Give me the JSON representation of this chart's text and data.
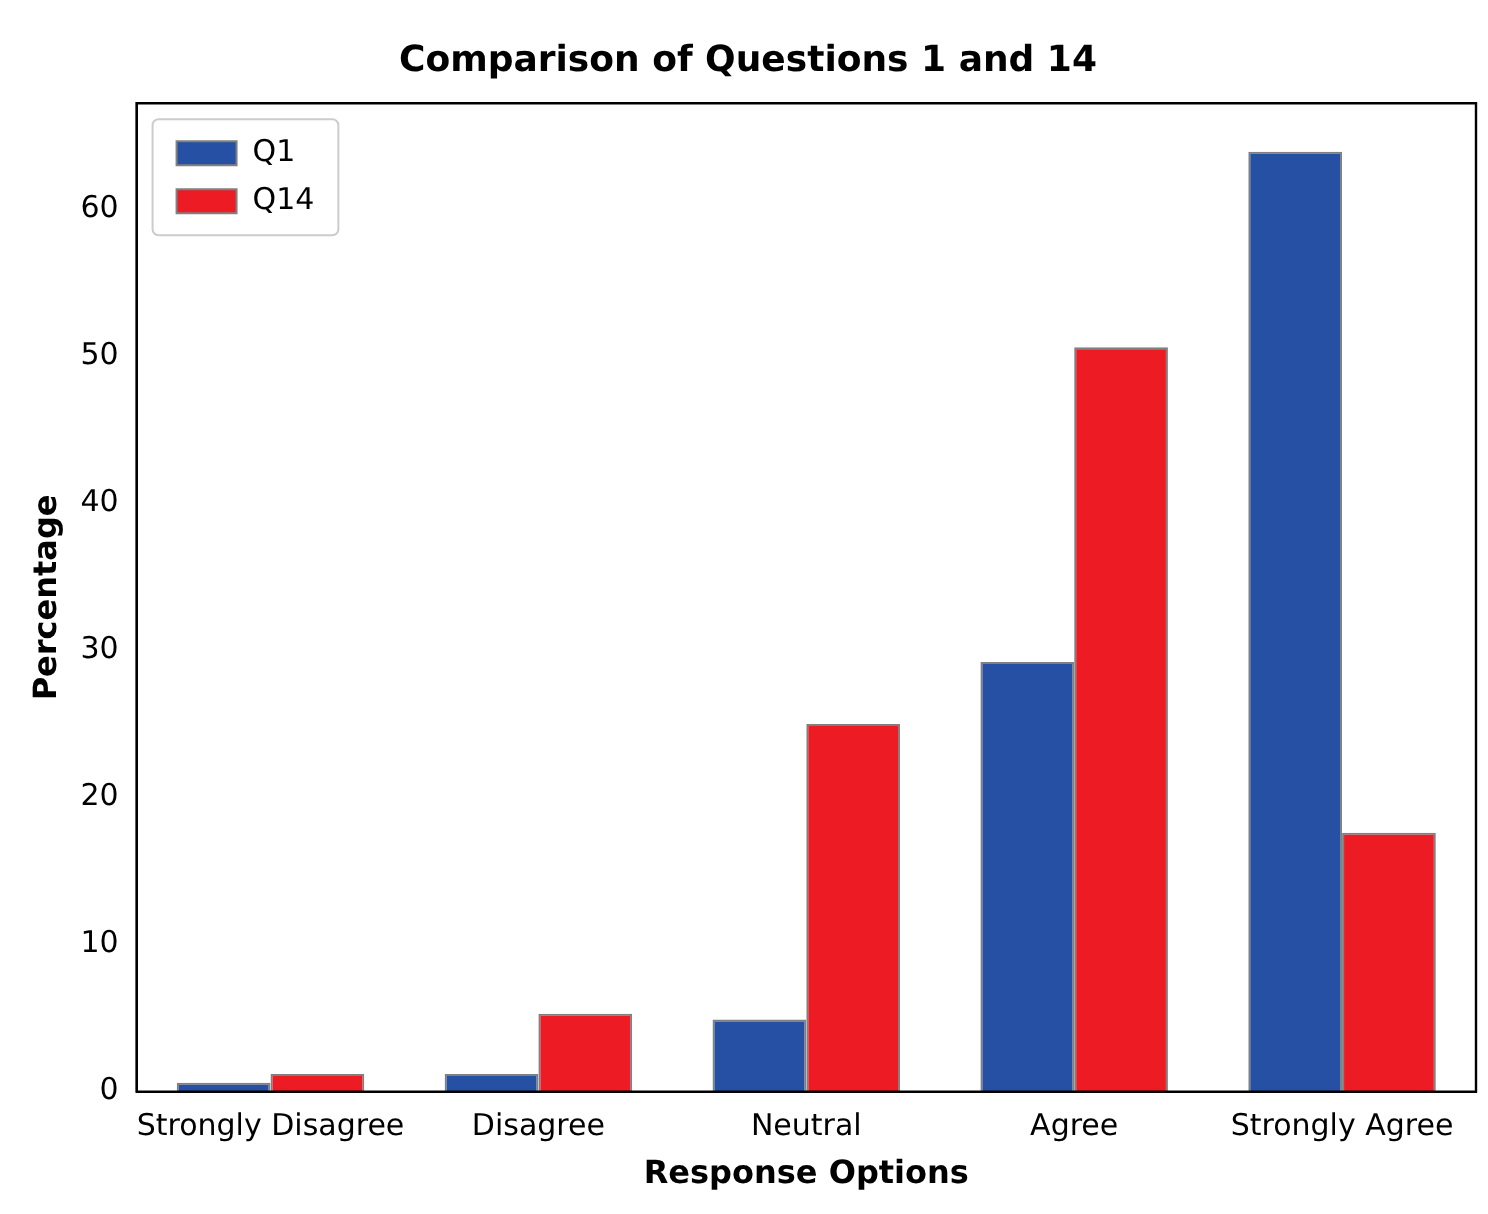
{
  "chart_data": {
    "type": "bar",
    "title": "Comparison of Questions 1 and 14",
    "xlabel": "Response Options",
    "ylabel": "Percentage",
    "categories": [
      "Strongly Disagree",
      "Disagree",
      "Neutral",
      "Agree",
      "Strongly Agree"
    ],
    "series": [
      {
        "name": "Q1",
        "color": "#2550a3",
        "values": [
          0.6,
          1.2,
          4.9,
          29.2,
          63.9
        ]
      },
      {
        "name": "Q14",
        "color": "#ed1c24",
        "values": [
          1.2,
          5.3,
          25.0,
          50.6,
          17.6
        ]
      }
    ],
    "ylim": [
      0,
      67.2
    ],
    "yticks": [
      0,
      10,
      20,
      30,
      40,
      50,
      60
    ],
    "grid": false,
    "legend": "top left"
  }
}
